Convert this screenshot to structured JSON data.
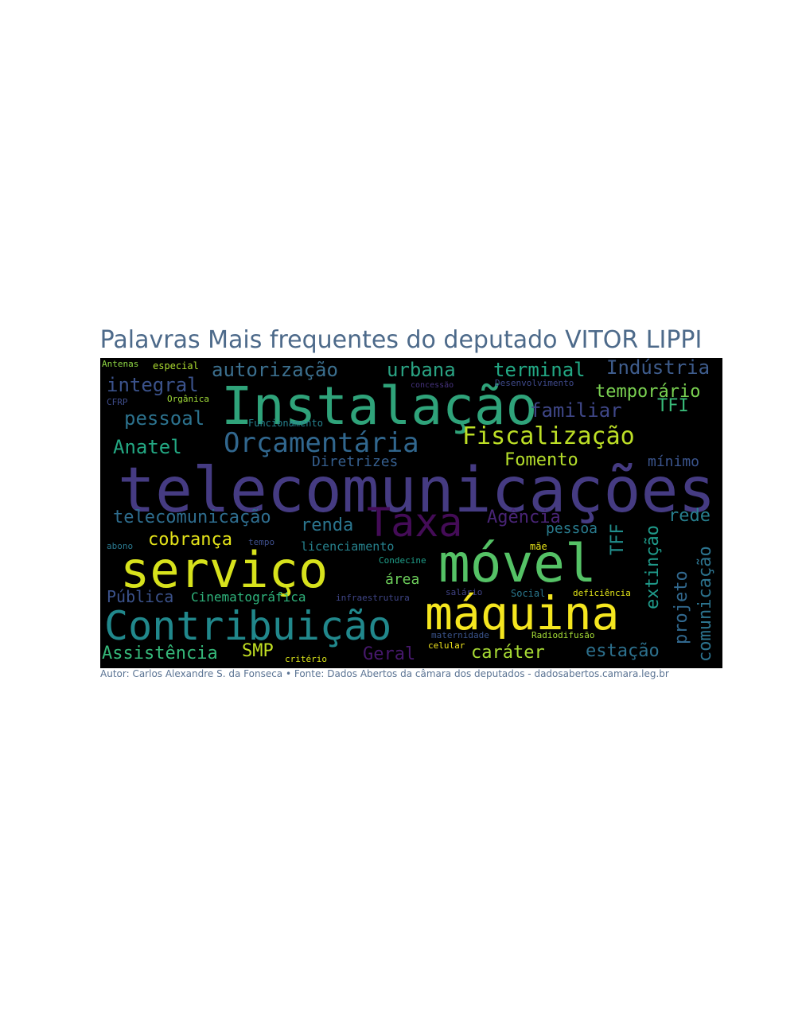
{
  "title": "Palavras Mais frequentes do deputado VITOR LIPPI",
  "credit": "Autor: Carlos Alexandre S. da Fonseca • Fonte: Dados Abertos da câmara dos deputados - dadosabertos.camara.leg.br",
  "words": [
    {
      "text": "telecomunicações",
      "color": "#453b82"
    },
    {
      "text": "Instalação",
      "color": "#2fa37a"
    },
    {
      "text": "serviço",
      "color": "#d7e21c"
    },
    {
      "text": "móvel",
      "color": "#55c266"
    },
    {
      "text": "máquina",
      "color": "#f5e61f"
    },
    {
      "text": "Contribuição",
      "color": "#21888c"
    },
    {
      "text": "Taxa",
      "color": "#440c57"
    },
    {
      "text": "Orçamentária",
      "color": "#31678e"
    },
    {
      "text": "Fiscalização",
      "color": "#bddf26"
    },
    {
      "text": "autorização",
      "color": "#3b6f8e"
    },
    {
      "text": "urbana",
      "color": "#2aa383"
    },
    {
      "text": "terminal",
      "color": "#22a884"
    },
    {
      "text": "Indústria",
      "color": "#3e5c8c"
    },
    {
      "text": "integral",
      "color": "#3b528b"
    },
    {
      "text": "temporário",
      "color": "#7ad151"
    },
    {
      "text": "pessoal",
      "color": "#2c728e"
    },
    {
      "text": "familiar",
      "color": "#3f4788"
    },
    {
      "text": "TFI",
      "color": "#38b977"
    },
    {
      "text": "Anatel",
      "color": "#23a883"
    },
    {
      "text": "Fomento",
      "color": "#b5de2b"
    },
    {
      "text": "Diretrizes",
      "color": "#355e8d"
    },
    {
      "text": "mínimo",
      "color": "#3a548c"
    },
    {
      "text": "telecomunicação",
      "color": "#2e6d8e"
    },
    {
      "text": "renda",
      "color": "#2b758e"
    },
    {
      "text": "Agência",
      "color": "#482475"
    },
    {
      "text": "pessoa",
      "color": "#297b8e"
    },
    {
      "text": "rede",
      "color": "#277f8e"
    },
    {
      "text": "cobrança",
      "color": "#e5e419"
    },
    {
      "text": "TFF",
      "color": "#218f8d"
    },
    {
      "text": "extinção",
      "color": "#1f9a8a"
    },
    {
      "text": "licenciamento",
      "color": "#26828e"
    },
    {
      "text": "projeto",
      "color": "#31688e"
    },
    {
      "text": "comunicação",
      "color": "#2c738e"
    },
    {
      "text": "Pública",
      "color": "#3b528b"
    },
    {
      "text": "Cinematográfica",
      "color": "#2fb47c"
    },
    {
      "text": "área",
      "color": "#6ccd5a"
    },
    {
      "text": "Assistência",
      "color": "#35b779"
    },
    {
      "text": "SMP",
      "color": "#c2df23"
    },
    {
      "text": "Geral",
      "color": "#46186c"
    },
    {
      "text": "caráter",
      "color": "#a8db34"
    },
    {
      "text": "estação",
      "color": "#2d718e"
    },
    {
      "text": "Antenas",
      "color": "#8fd744"
    },
    {
      "text": "especial",
      "color": "#addc30"
    },
    {
      "text": "concessão",
      "color": "#46337e"
    },
    {
      "text": "Desenvolvimento",
      "color": "#3e4989"
    },
    {
      "text": "CFRP",
      "color": "#3e4c8a"
    },
    {
      "text": "Orgânica",
      "color": "#a0da39"
    },
    {
      "text": "Funcionamento",
      "color": "#26818e"
    },
    {
      "text": "abono",
      "color": "#2a788e"
    },
    {
      "text": "tempo",
      "color": "#3d4e8a"
    },
    {
      "text": "mãe",
      "color": "#e7e419"
    },
    {
      "text": "Condecine",
      "color": "#1f9e89"
    },
    {
      "text": "infraestrutura",
      "color": "#404688"
    },
    {
      "text": "salário",
      "color": "#414487"
    },
    {
      "text": "Social",
      "color": "#2a788e"
    },
    {
      "text": "deficiência",
      "color": "#e0e318"
    },
    {
      "text": "maternidade",
      "color": "#3a548c"
    },
    {
      "text": "Radiodifusão",
      "color": "#a5db36"
    },
    {
      "text": "celular",
      "color": "#f1e51d"
    },
    {
      "text": "critério",
      "color": "#d8e219"
    }
  ]
}
